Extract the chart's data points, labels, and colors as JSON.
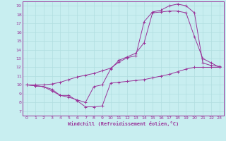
{
  "bg_color": "#c8eef0",
  "line_color": "#993399",
  "grid_color": "#b0dde0",
  "xlabel": "Windchill (Refroidissement éolien,°C)",
  "xlim": [
    -0.5,
    23.5
  ],
  "ylim": [
    6.5,
    19.5
  ],
  "xticks": [
    0,
    1,
    2,
    3,
    4,
    5,
    6,
    7,
    8,
    9,
    10,
    11,
    12,
    13,
    14,
    15,
    16,
    17,
    18,
    19,
    20,
    21,
    22,
    23
  ],
  "yticks": [
    7,
    8,
    9,
    10,
    11,
    12,
    13,
    14,
    15,
    16,
    17,
    18,
    19
  ],
  "curve1_x": [
    0,
    1,
    2,
    3,
    4,
    5,
    6,
    7,
    8,
    9,
    10,
    11,
    12,
    13,
    14,
    15,
    16,
    17,
    18,
    19,
    20,
    21,
    22,
    23
  ],
  "curve1_y": [
    10,
    9.9,
    9.8,
    9.5,
    8.8,
    8.8,
    8.2,
    7.5,
    7.5,
    7.6,
    10.2,
    10.3,
    10.4,
    10.5,
    10.6,
    10.8,
    11.0,
    11.2,
    11.5,
    11.8,
    12.0,
    12.0,
    12.0,
    12.0
  ],
  "curve2_x": [
    0,
    1,
    2,
    3,
    4,
    5,
    6,
    7,
    8,
    9,
    10,
    11,
    12,
    13,
    14,
    15,
    16,
    17,
    18,
    19,
    20,
    21,
    22,
    23
  ],
  "curve2_y": [
    10,
    9.9,
    9.8,
    9.3,
    8.8,
    8.6,
    8.3,
    8.0,
    9.8,
    10.0,
    11.8,
    12.8,
    13.2,
    13.6,
    14.8,
    18.2,
    18.3,
    18.4,
    18.4,
    18.2,
    15.5,
    13.0,
    12.5,
    12.0
  ],
  "curve3_x": [
    0,
    1,
    2,
    3,
    4,
    5,
    6,
    7,
    8,
    9,
    10,
    11,
    12,
    13,
    14,
    15,
    16,
    17,
    18,
    19,
    20,
    21,
    22,
    23
  ],
  "curve3_y": [
    10,
    10.0,
    10.0,
    10.1,
    10.3,
    10.6,
    10.9,
    11.1,
    11.3,
    11.6,
    11.9,
    12.6,
    13.1,
    13.3,
    17.2,
    18.3,
    18.5,
    19.0,
    19.2,
    19.0,
    18.2,
    12.5,
    12.2,
    12.1
  ]
}
